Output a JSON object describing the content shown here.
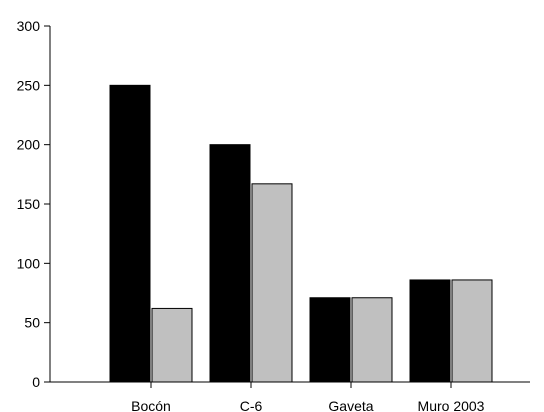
{
  "chart_data": {
    "type": "bar",
    "title": "",
    "xlabel": "",
    "ylabel": "",
    "categories": [
      "Bocón",
      "C-6",
      "Gaveta",
      "Muro 2003"
    ],
    "series": [
      {
        "values": [
          250,
          200,
          71,
          86
        ],
        "color": "#000000"
      },
      {
        "values": [
          62,
          167,
          71,
          86
        ],
        "color": "#c0c0c0"
      }
    ],
    "ylim": [
      0,
      300
    ],
    "yticks": [
      0,
      50,
      100,
      150,
      200,
      250,
      300
    ],
    "grid": false,
    "legend": "none"
  }
}
